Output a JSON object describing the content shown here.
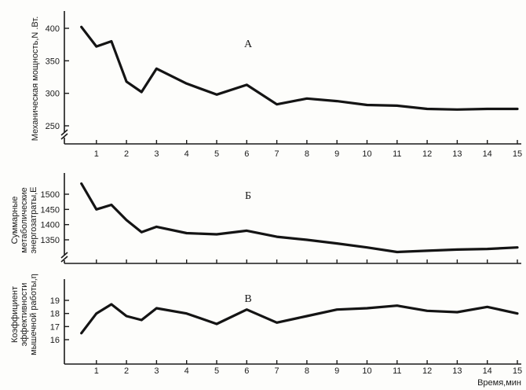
{
  "chart_data": [
    {
      "type": "line",
      "panel_letter": "A",
      "ylabel": "Механическая мощность,N .Вт.",
      "xlabel": "",
      "ylim": [
        250,
        410
      ],
      "yticks": [
        250,
        300,
        350,
        400
      ],
      "xticks": [
        1,
        2,
        3,
        4,
        5,
        6,
        7,
        8,
        9,
        10,
        11,
        12,
        13,
        14,
        15
      ],
      "axis_break": true,
      "series": [
        {
          "x": [
            0.5,
            1,
            1.5,
            2,
            2.5,
            3,
            4,
            5,
            6,
            7,
            8,
            9,
            10,
            11,
            12,
            13,
            14,
            15
          ],
          "y": [
            402,
            372,
            380,
            318,
            302,
            338,
            315,
            298,
            313,
            283,
            292,
            288,
            282,
            281,
            276,
            275,
            276,
            276
          ]
        }
      ]
    },
    {
      "type": "line",
      "panel_letter": "Б",
      "ylabel": "Суммарные метаболические энергозатраты,Е",
      "xlabel": "",
      "ylim": [
        1300,
        1540
      ],
      "yticks": [
        1350,
        1400,
        1450,
        1500
      ],
      "xticks": [],
      "axis_break": true,
      "series": [
        {
          "x": [
            0.5,
            1,
            1.5,
            2,
            2.5,
            3,
            4,
            5,
            6,
            7,
            8,
            9,
            10,
            11,
            12,
            13,
            14,
            15
          ],
          "y": [
            1535,
            1450,
            1465,
            1415,
            1375,
            1393,
            1372,
            1368,
            1380,
            1360,
            1350,
            1338,
            1325,
            1310,
            1314,
            1318,
            1320,
            1325
          ]
        }
      ]
    },
    {
      "type": "line",
      "panel_letter": "В",
      "ylabel": "Коэффициент эффективности мышечной работы,η",
      "xlabel": "Время,мин",
      "ylim": [
        15.7,
        19.6
      ],
      "yticks": [
        16,
        17,
        18,
        19
      ],
      "xticks": [
        1,
        2,
        3,
        4,
        5,
        6,
        7,
        8,
        9,
        10,
        11,
        12,
        13,
        14,
        15
      ],
      "axis_break": false,
      "series": [
        {
          "x": [
            0.5,
            1,
            1.5,
            2,
            2.5,
            3,
            4,
            5,
            6,
            7,
            8,
            9,
            10,
            11,
            12,
            13,
            14,
            15
          ],
          "y": [
            16.5,
            18.0,
            18.7,
            17.8,
            17.5,
            18.4,
            18.0,
            17.2,
            18.3,
            17.3,
            17.8,
            18.3,
            18.4,
            18.6,
            18.2,
            18.1,
            18.5,
            18.0
          ]
        }
      ]
    }
  ]
}
